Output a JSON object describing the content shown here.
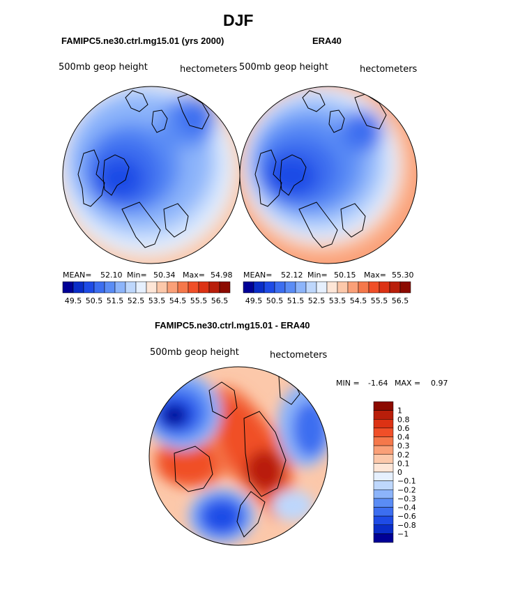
{
  "page_title": "DJF",
  "panels": [
    {
      "case_title": "FAMIPC5.ne30.ctrl.mg15.01 (yrs 2000)",
      "field": "500mb geop height",
      "units": "hectometers",
      "stats": {
        "mean_label": "MEAN=",
        "mean": "52.10",
        "min_label": "Min=",
        "min": "50.34",
        "max_label": "Max=",
        "max": "54.98"
      }
    },
    {
      "case_title": "ERA40",
      "field": "500mb geop height",
      "units": "hectometers",
      "stats": {
        "mean_label": "MEAN=",
        "mean": "52.12",
        "min_label": "Min=",
        "min": "50.15",
        "max_label": "Max=",
        "max": "55.30"
      }
    }
  ],
  "diff_panel": {
    "title": "FAMIPC5.ne30.ctrl.mg15.01 - ERA40",
    "field": "500mb geop height",
    "units": "hectometers",
    "min_label": "MIN =",
    "min": "-1.64",
    "max_label": "MAX =",
    "max": "0.97"
  },
  "chart_data": [
    {
      "type": "heatmap",
      "projection": "polar-stereographic (North Pole)",
      "title": "FAMIPC5.ne30.ctrl.mg15.01 (yrs 2000)",
      "colorbar_labels": [
        "49.5",
        "50.5",
        "51.5",
        "52.5",
        "53.5",
        "54.5",
        "55.5",
        "56.5"
      ],
      "colorbar_colors": [
        "#000096",
        "#0a2dc8",
        "#1e4be6",
        "#3c6ef0",
        "#5a8cf5",
        "#8cb4fa",
        "#bed7fc",
        "#e6f0fe",
        "#fee6d7",
        "#fcc8aa",
        "#faa078",
        "#f5784b",
        "#f04f28",
        "#dc3214",
        "#b91e0a",
        "#8c0a00"
      ],
      "mean": 52.1,
      "min": 50.34,
      "max": 54.98
    },
    {
      "type": "heatmap",
      "projection": "polar-stereographic (North Pole)",
      "title": "ERA40",
      "colorbar_labels": [
        "49.5",
        "50.5",
        "51.5",
        "52.5",
        "53.5",
        "54.5",
        "55.5",
        "56.5"
      ],
      "colorbar_colors": [
        "#000096",
        "#0a2dc8",
        "#1e4be6",
        "#3c6ef0",
        "#5a8cf5",
        "#8cb4fa",
        "#bed7fc",
        "#e6f0fe",
        "#fee6d7",
        "#fcc8aa",
        "#faa078",
        "#f5784b",
        "#f04f28",
        "#dc3214",
        "#b91e0a",
        "#8c0a00"
      ],
      "mean": 52.12,
      "min": 50.15,
      "max": 55.3
    },
    {
      "type": "heatmap",
      "projection": "polar-stereographic (North Pole)",
      "title": "FAMIPC5.ne30.ctrl.mg15.01 - ERA40",
      "colorbar_labels": [
        "1",
        "0.8",
        "0.6",
        "0.4",
        "0.3",
        "0.2",
        "0.1",
        "0",
        "−0.1",
        "−0.2",
        "−0.3",
        "−0.4",
        "−0.6",
        "−0.8",
        "−1"
      ],
      "colorbar_colors": [
        "#8c0a00",
        "#b91e0a",
        "#dc3214",
        "#f04f28",
        "#f5784b",
        "#faa078",
        "#fcc8aa",
        "#fee6d7",
        "#e6f0fe",
        "#bed7fc",
        "#8cb4fa",
        "#5a8cf5",
        "#3c6ef0",
        "#1e4be6",
        "#0a2dc8",
        "#000096"
      ],
      "min": -1.64,
      "max": 0.97
    }
  ]
}
